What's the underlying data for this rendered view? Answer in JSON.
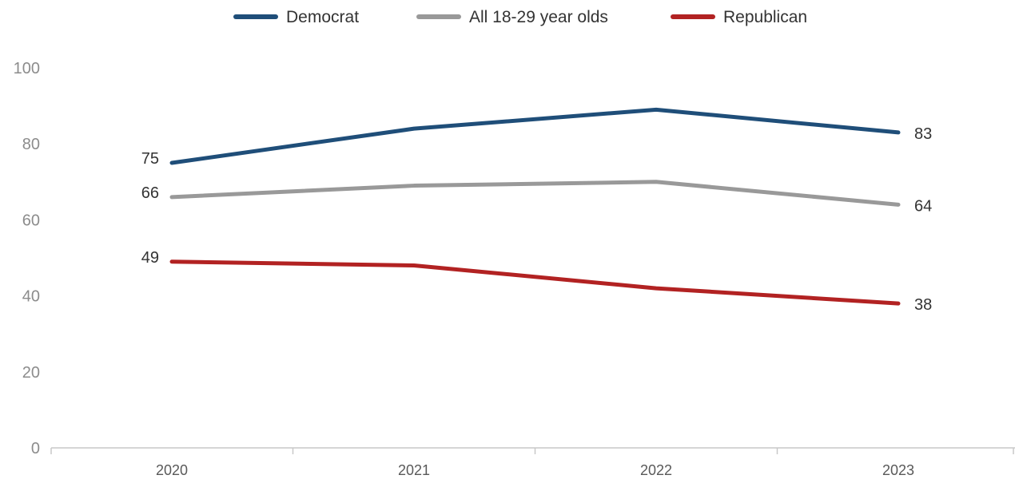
{
  "chart_data": {
    "type": "line",
    "x": [
      "2020",
      "2021",
      "2022",
      "2023"
    ],
    "ylim": [
      0,
      100
    ],
    "yticks": [
      0,
      20,
      40,
      60,
      80,
      100
    ],
    "grid": false,
    "legend_position": "top-center",
    "series": [
      {
        "name": "Democrat",
        "color": "#1f4e79",
        "values": [
          75,
          84,
          89,
          83
        ]
      },
      {
        "name": "All 18-29 year olds",
        "color": "#999999",
        "values": [
          66,
          69,
          70,
          64
        ]
      },
      {
        "name": "Republican",
        "color": "#b22222",
        "values": [
          49,
          48,
          42,
          38
        ]
      }
    ],
    "data_labels": [
      {
        "series": 0,
        "points": [
          0,
          3
        ]
      },
      {
        "series": 1,
        "points": [
          0,
          3
        ]
      },
      {
        "series": 2,
        "points": [
          0,
          3
        ]
      }
    ]
  }
}
